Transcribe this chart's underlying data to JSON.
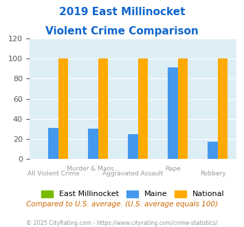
{
  "title_line1": "2019 East Millinocket",
  "title_line2": "Violent Crime Comparison",
  "categories": [
    "All Violent Crime",
    "Murder & Mans...",
    "Aggravated Assault",
    "Rape",
    "Robbery"
  ],
  "east_millinocket": [
    0,
    0,
    0,
    0,
    0
  ],
  "maine": [
    31,
    30,
    25,
    91,
    17
  ],
  "national": [
    100,
    100,
    100,
    100,
    100
  ],
  "ylim": [
    0,
    120
  ],
  "yticks": [
    0,
    20,
    40,
    60,
    80,
    100,
    120
  ],
  "color_east": "#77bb00",
  "color_maine": "#4499ee",
  "color_national": "#ffaa00",
  "color_title": "#1166cc",
  "color_bg_plot": "#ddeef5",
  "color_bg_fig": "#ffffff",
  "color_subtitle": "#cc6600",
  "color_footer": "#999999",
  "legend_labels": [
    "East Millinocket",
    "Maine",
    "National"
  ],
  "subtitle": "Compared to U.S. average. (U.S. average equals 100)",
  "footer": "© 2025 CityRating.com - https://www.cityrating.com/crime-statistics/",
  "bar_width": 0.25
}
